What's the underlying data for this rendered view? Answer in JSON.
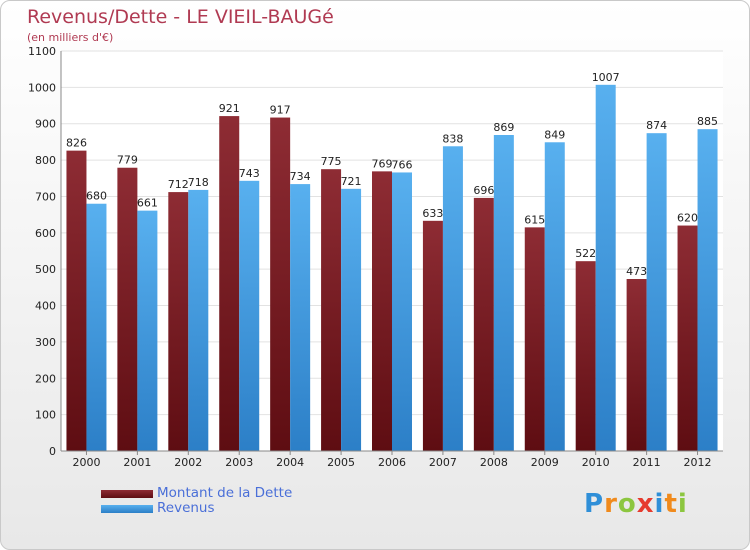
{
  "chart_data": {
    "type": "bar",
    "title": "Revenus/Dette - LE VIEIL-BAUGé",
    "subtitle": "(en milliers d'€)",
    "categories": [
      "2000",
      "2001",
      "2002",
      "2003",
      "2004",
      "2005",
      "2006",
      "2007",
      "2008",
      "2009",
      "2010",
      "2011",
      "2012"
    ],
    "series": [
      {
        "name": "Montant de la Dette",
        "color": "#7a1f25",
        "values": [
          826,
          779,
          712,
          921,
          917,
          775,
          769,
          633,
          696,
          615,
          522,
          473,
          620
        ]
      },
      {
        "name": "Revenus",
        "color": "#4aa3e6",
        "values": [
          680,
          661,
          718,
          743,
          734,
          721,
          766,
          838,
          869,
          849,
          1007,
          874,
          885
        ]
      }
    ],
    "ylim": [
      0,
      1100
    ],
    "yticks": [
      0,
      100,
      200,
      300,
      400,
      500,
      600,
      700,
      800,
      900,
      1000,
      1100
    ],
    "grid": true,
    "legend_position": "bottom-left"
  },
  "logo": {
    "letters": [
      "P",
      "r",
      "o",
      "x",
      "i",
      "t",
      "i"
    ],
    "colors": [
      "#2f8fd8",
      "#f08a1c",
      "#8cc63f",
      "#e63b2e",
      "#2f8fd8",
      "#f08a1c",
      "#8cc63f"
    ]
  }
}
